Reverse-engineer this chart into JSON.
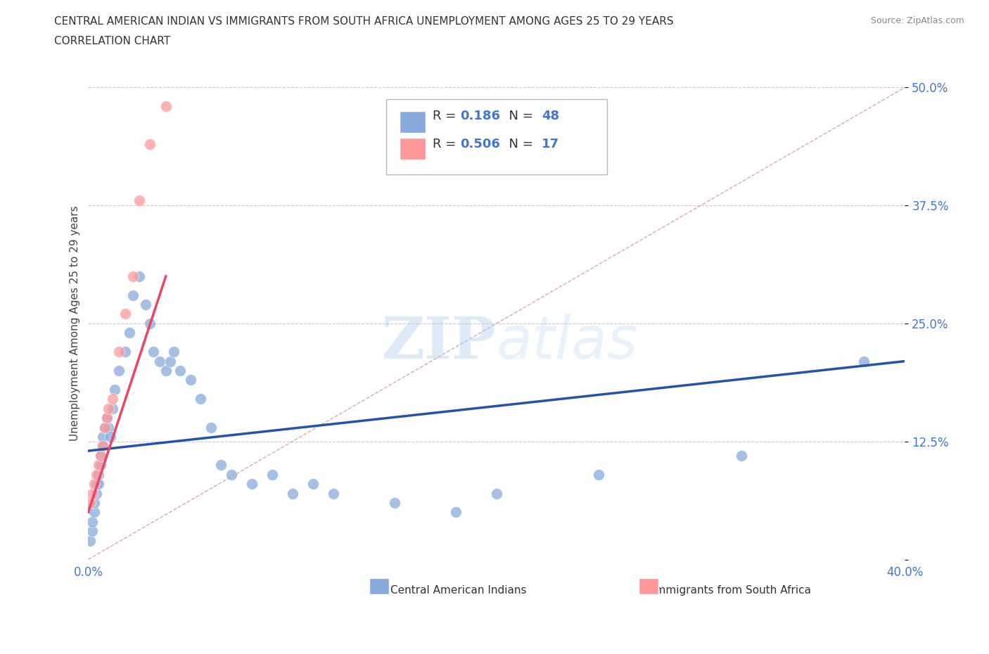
{
  "title_line1": "CENTRAL AMERICAN INDIAN VS IMMIGRANTS FROM SOUTH AFRICA UNEMPLOYMENT AMONG AGES 25 TO 29 YEARS",
  "title_line2": "CORRELATION CHART",
  "source": "Source: ZipAtlas.com",
  "ylabel": "Unemployment Among Ages 25 to 29 years",
  "xlim": [
    0,
    0.4
  ],
  "ylim": [
    0,
    0.5
  ],
  "xticks": [
    0.0,
    0.1,
    0.2,
    0.3,
    0.4
  ],
  "xtick_labels": [
    "0.0%",
    "",
    "",
    "",
    "40.0%"
  ],
  "ytick_labels": [
    "",
    "12.5%",
    "25.0%",
    "37.5%",
    "50.0%"
  ],
  "yticks": [
    0.0,
    0.125,
    0.25,
    0.375,
    0.5
  ],
  "blue_color": "#88AADD",
  "pink_color": "#FF9999",
  "blue_line_color": "#2255AA",
  "pink_line_color": "#EE4466",
  "diag_color": "#DDAAAA",
  "R_blue": "0.186",
  "N_blue": "48",
  "R_pink": "0.506",
  "N_pink": "17",
  "watermark_zip": "ZIP",
  "watermark_atlas": "atlas",
  "legend_label_blue": "Central American Indians",
  "legend_label_pink": "Immigrants from South Africa",
  "blue_scatter_x": [
    0.001,
    0.002,
    0.002,
    0.003,
    0.003,
    0.004,
    0.004,
    0.005,
    0.005,
    0.006,
    0.006,
    0.007,
    0.007,
    0.008,
    0.009,
    0.01,
    0.011,
    0.012,
    0.013,
    0.015,
    0.018,
    0.02,
    0.022,
    0.025,
    0.028,
    0.03,
    0.032,
    0.035,
    0.038,
    0.04,
    0.042,
    0.045,
    0.05,
    0.055,
    0.06,
    0.065,
    0.07,
    0.08,
    0.09,
    0.1,
    0.11,
    0.12,
    0.15,
    0.18,
    0.2,
    0.25,
    0.32,
    0.38
  ],
  "blue_scatter_y": [
    0.02,
    0.03,
    0.04,
    0.05,
    0.06,
    0.07,
    0.08,
    0.08,
    0.09,
    0.1,
    0.11,
    0.12,
    0.13,
    0.14,
    0.15,
    0.14,
    0.13,
    0.16,
    0.18,
    0.2,
    0.22,
    0.24,
    0.28,
    0.3,
    0.27,
    0.25,
    0.22,
    0.21,
    0.2,
    0.21,
    0.22,
    0.2,
    0.19,
    0.17,
    0.14,
    0.1,
    0.09,
    0.08,
    0.09,
    0.07,
    0.08,
    0.07,
    0.06,
    0.05,
    0.07,
    0.09,
    0.11,
    0.21
  ],
  "pink_scatter_x": [
    0.001,
    0.002,
    0.003,
    0.004,
    0.005,
    0.006,
    0.007,
    0.008,
    0.009,
    0.01,
    0.012,
    0.015,
    0.018,
    0.022,
    0.025,
    0.03,
    0.038
  ],
  "pink_scatter_y": [
    0.06,
    0.07,
    0.08,
    0.09,
    0.1,
    0.11,
    0.12,
    0.14,
    0.15,
    0.16,
    0.17,
    0.22,
    0.26,
    0.3,
    0.38,
    0.44,
    0.48
  ]
}
